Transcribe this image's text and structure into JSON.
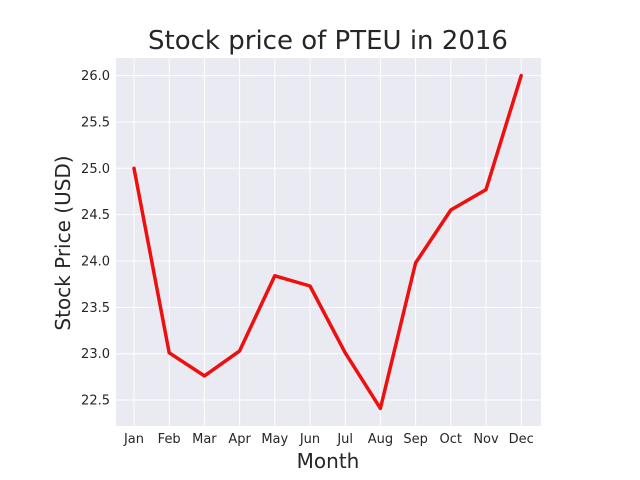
{
  "chart_data": {
    "type": "line",
    "title": "Stock price of PTEU in 2016",
    "xlabel": "Month",
    "ylabel": "Stock Price (USD)",
    "categories": [
      "Jan",
      "Feb",
      "Mar",
      "Apr",
      "May",
      "Jun",
      "Jul",
      "Aug",
      "Sep",
      "Oct",
      "Nov",
      "Dec"
    ],
    "series": [
      {
        "values": [
          25.0,
          23.01,
          22.76,
          23.03,
          23.84,
          23.73,
          23.01,
          22.41,
          23.98,
          24.55,
          24.77,
          26.0
        ]
      }
    ],
    "yticks": [
      "22.5",
      "23.0",
      "23.5",
      "24.0",
      "24.5",
      "25.0",
      "25.5",
      "26.0"
    ],
    "ylim": [
      22.22,
      26.19
    ],
    "grid": true,
    "colors": {
      "line": "#ee0f0f",
      "plot_bg": "#eaeaf2",
      "grid": "#ffffff"
    }
  }
}
